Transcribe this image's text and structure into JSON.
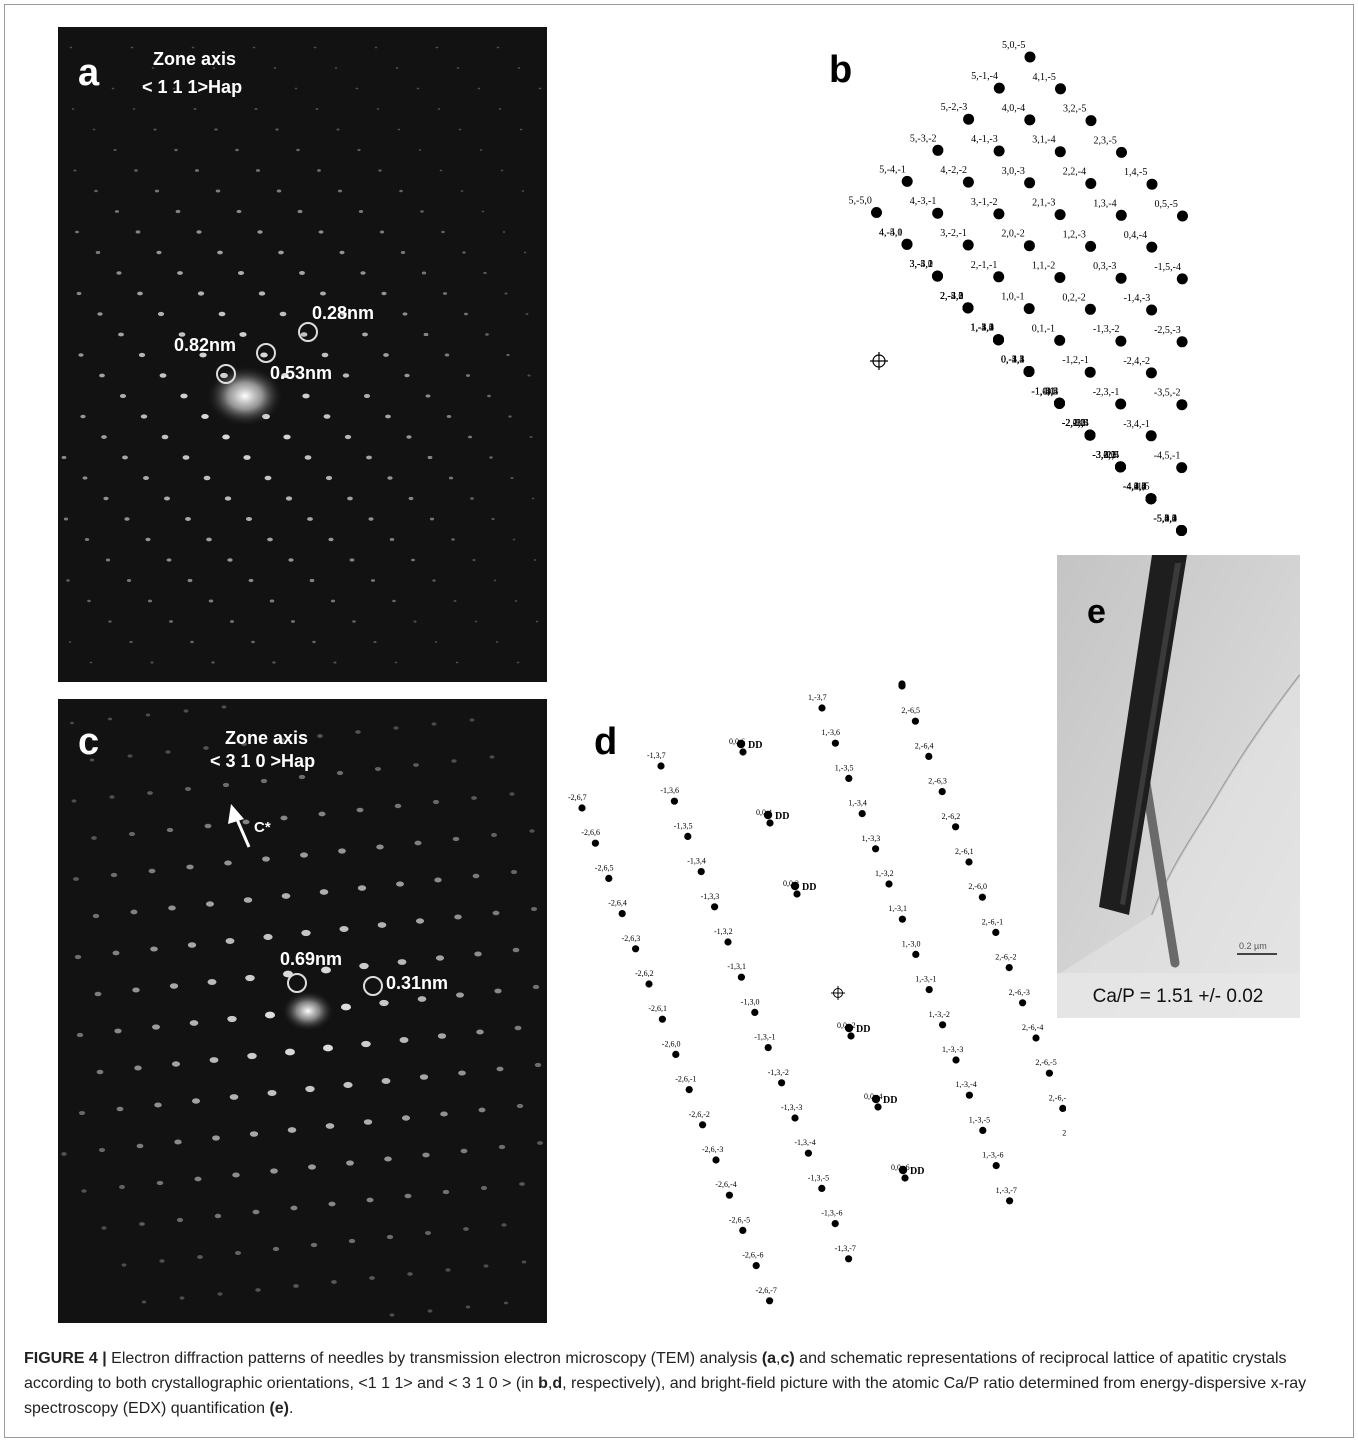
{
  "panel_a": {
    "letter": "a",
    "zone_axis_title": "Zone axis",
    "zone_axis_value": "< 1 1 1>Hap",
    "labels": [
      "0.28nm",
      "0.82nm",
      "0.53nm"
    ]
  },
  "panel_c": {
    "letter": "c",
    "zone_axis_title": "Zone axis",
    "zone_axis_value": "< 3 1 0 >Hap",
    "arrow_label": "C*",
    "labels": [
      "0.69nm",
      "0.31nm"
    ]
  },
  "panel_b": {
    "letter": "b",
    "rows": [
      [
        "5,0,-5",
        "4,1,-5",
        "3,2,-5",
        "2,3,-5",
        "1,4,-5",
        "0,5,-5"
      ],
      [
        "5,-1,-4",
        "4,0,-4",
        "3,1,-4",
        "2,2,-4",
        "1,3,-4",
        "0,4,-4",
        "-1,5,-4"
      ],
      [
        "5,-2,-3",
        "4,-1,-3",
        "3,0,-3",
        "2,1,-3",
        "1,2,-3",
        "0,3,-3",
        "-1,4,-3",
        "-2,5,-3"
      ],
      [
        "5,-3,-2",
        "4,-2,-2",
        "3,-1,-2",
        "2,0,-2",
        "1,1,-2",
        "0,2,-2",
        "-1,3,-2",
        "-2,4,-2",
        "-3,5,-2"
      ],
      [
        "5,-4,-1",
        "4,-3,-1",
        "3,-2,-1",
        "2,-1,-1",
        "1,0,-1",
        "0,1,-1",
        "-1,2,-1",
        "-2,3,-1",
        "-3,4,-1",
        "-4,5,-1"
      ],
      [
        "5,-5,0",
        "4,-4,0",
        "3,-3,0",
        "2,-2,0",
        "1,-1,0",
        "",
        "-1,1,0",
        "-2,2,0",
        "-3,3,0",
        "-4,4,0",
        "-5,5,0"
      ],
      [
        "4,-5,1",
        "3,-4,1",
        "2,-3,1",
        "1,-2,1",
        "0,-1,1",
        "-1,0,1",
        "-2,1,1",
        "-3,2,1",
        "-4,3,1",
        "-5,4,1"
      ],
      [
        "3,-5,2",
        "2,-4,2",
        "1,-3,2",
        "0,-2,2",
        "-1,-1,2",
        "-2,0,2",
        "-3,1,2",
        "-4,2,2",
        "-5,3,2"
      ],
      [
        "2,-5,3",
        "1,-4,3",
        "0,-3,3",
        "-1,-2,3",
        "-2,-1,3",
        "-3,0,3",
        "-4,1,3",
        "-5,2,3"
      ],
      [
        "1,-5,4",
        "0,-4,4",
        "-1,-3,4",
        "-2,-2,4",
        "-3,-1,4",
        "-4,0,4",
        "-5,1,4"
      ],
      [
        "0,-5,5",
        "-1,-4,5",
        "-2,-3,5",
        "-3,-2,5",
        "-4,-1,5",
        "-5,0,5"
      ]
    ]
  },
  "panel_d": {
    "letter": "d",
    "dd_label": "DD",
    "columns": [
      [
        "-2,6,7",
        "-2,6,6",
        "-2,6,5",
        "-2,6,4",
        "-2,6,3",
        "-2,6,2",
        "-2,6,1",
        "-2,6,0",
        "-2,6,-1",
        "-2,6,-2",
        "-2,6,-3",
        "-2,6,-4",
        "-2,6,-5",
        "-2,6,-6",
        "-2,6,-7"
      ],
      [
        "-1,3,7",
        "-1,3,6",
        "-1,3,5",
        "-1,3,4",
        "-1,3,3",
        "-1,3,2",
        "-1,3,1",
        "-1,3,0",
        "-1,3,-1",
        "-1,3,-2",
        "-1,3,-3",
        "-1,3,-4",
        "-1,3,-5",
        "-1,3,-6",
        "-1,3,-7"
      ],
      [
        "0,0,6",
        "0,0,4",
        "0,0,2",
        "0,0,-2",
        "0,0,-4",
        "0,0,-6"
      ],
      [
        "1,-3,7",
        "1,-3,6",
        "1,-3,5",
        "1,-3,4",
        "1,-3,3",
        "1,-3,2",
        "1,-3,1",
        "1,-3,0",
        "1,-3,-1",
        "1,-3,-2",
        "1,-3,-3",
        "1,-3,-4",
        "1,-3,-5",
        "1,-3,-6",
        "1,-3,-7"
      ],
      [
        "2,-6,6",
        "2,-6,5",
        "2,-6,4",
        "2,-6,3",
        "2,-6,2",
        "2,-6,1",
        "2,-6,0",
        "2,-6,-1",
        "2,-6,-2",
        "2,-6,-3",
        "2,-6,-4",
        "2,-6,-5",
        "2,-6,-6",
        "2,-6,-7"
      ]
    ]
  },
  "panel_e": {
    "letter": "e",
    "ratio_text": "Ca/P = 1.51 +/- 0.02",
    "scale_bar_text": "0.2 µm"
  },
  "caption": {
    "label": "FIGURE 4 |",
    "t1": " Electron diffraction patterns of needles by transmission electron microscopy (TEM) analysis ",
    "b1": "(a",
    "t2": ",",
    "b2": "c)",
    "t3": " and schematic representations of reciprocal lattice of apatitic crystals according to both crystallographic orientations, <1 1 1> and < 3 1 0 > (in ",
    "b3": "b",
    "t4": ",",
    "b4": "d",
    "t5": ", respectively), and bright-field picture with the atomic Ca/P ratio determined from energy-dispersive x-ray spectroscopy (EDX) quantification ",
    "b5": "(e)",
    "t6": "."
  }
}
